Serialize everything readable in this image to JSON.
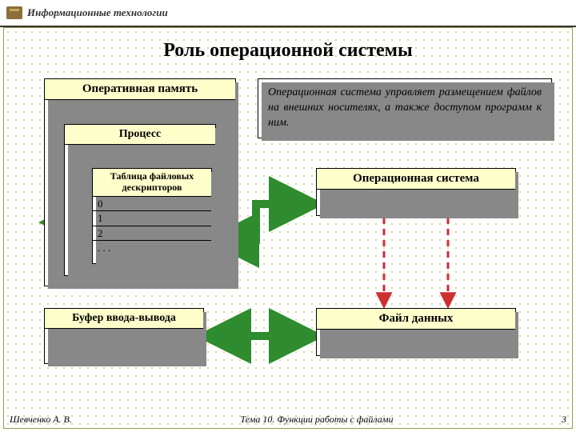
{
  "header": {
    "title": "Информационные технологии"
  },
  "main_title": "Роль операционной системы",
  "boxes": {
    "ram": {
      "label": "Оперативная память"
    },
    "process": {
      "label": "Процесс"
    },
    "fd_table": {
      "label": "Таблица файловых дескрипторов",
      "rows": [
        "0",
        "1",
        "2",
        ". . ."
      ]
    },
    "io_buffer": {
      "label": "Буфер ввода-вывода"
    },
    "os": {
      "label": "Операционная система"
    },
    "file": {
      "label": "Файл данных"
    },
    "description": "Операционная система управляет размещением файлов на внешних носителях, а также доступом программ к ним."
  },
  "footer": {
    "author": "Шевченко А. В.",
    "topic": "Тема 10. Функции работы с файлами",
    "page": "3"
  },
  "style": {
    "yellow": "#ffffcc",
    "green_arrow": "#2e8b2e",
    "red_dash": "#cc3030"
  }
}
